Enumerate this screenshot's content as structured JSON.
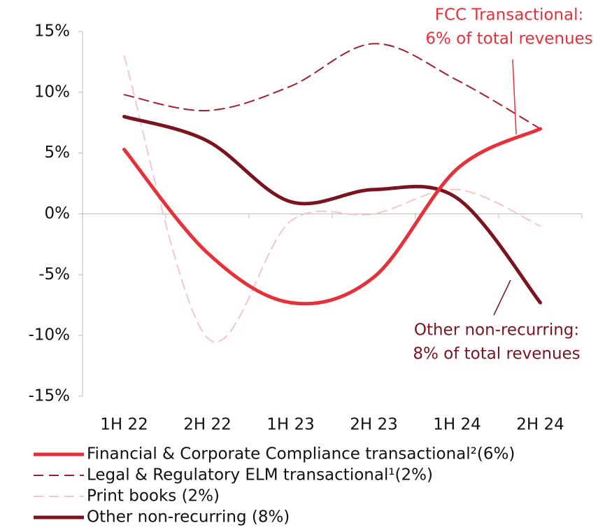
{
  "chart_data": {
    "type": "line",
    "categories": [
      "1H 22",
      "2H 22",
      "1H 23",
      "2H 23",
      "1H 24",
      "2H 24"
    ],
    "series": [
      {
        "name": "Financial & Corporate Compliance transactional²(6%)",
        "color": "#e8303a",
        "dash": "solid",
        "values": [
          5.3,
          -3.2,
          -7.3,
          -5.2,
          3.7,
          7
        ]
      },
      {
        "name": "Legal & Regulatory ELM transactional¹(2%)",
        "color": "#a31f2d",
        "dash": "dashed",
        "values": [
          9.8,
          8.5,
          10.5,
          14,
          11,
          7
        ]
      },
      {
        "name": "Print books (2%)",
        "color": "#f7c6c8",
        "dash": "dashed",
        "values": [
          13,
          -10.2,
          -0.6,
          0,
          2,
          -1
        ]
      },
      {
        "name": "Other non-recurring (8%)",
        "color": "#7a1420",
        "dash": "solid",
        "values": [
          8,
          6,
          1,
          2,
          1.3,
          -7.3
        ]
      }
    ],
    "ylim": [
      -15,
      15
    ],
    "yticks": [
      {
        "value": -15,
        "label": "-15%"
      },
      {
        "value": -10,
        "label": "-10%"
      },
      {
        "value": -5,
        "label": "-5%"
      },
      {
        "value": 0,
        "label": "0%"
      },
      {
        "value": 5,
        "label": "5%"
      },
      {
        "value": 10,
        "label": "10%"
      },
      {
        "value": 15,
        "label": "15%"
      }
    ],
    "annotations": [
      {
        "lines": [
          "FCC Transactional:",
          "6% of total revenues"
        ],
        "color": "#e8303a"
      },
      {
        "lines": [
          "Other non-recurring:",
          "8% of total revenues"
        ],
        "color": "#7a1420"
      }
    ]
  }
}
